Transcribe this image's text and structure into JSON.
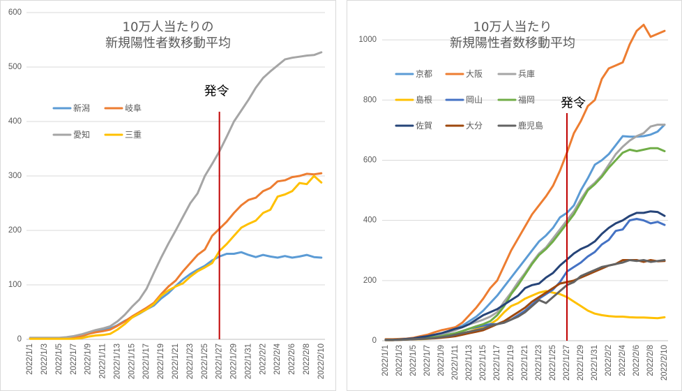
{
  "chart_data": [
    {
      "type": "line",
      "title_lines": [
        "10万人当たりの",
        "新規陽性者数移動平均"
      ],
      "xlabel": "",
      "ylabel": "",
      "x_ticks": [
        "2022/1/1",
        "2022/1/3",
        "2022/1/5",
        "2022/1/7",
        "2022/1/9",
        "2022/1/11",
        "2022/1/13",
        "2022/1/15",
        "2022/1/17",
        "2022/1/19",
        "2022/1/21",
        "2022/1/23",
        "2022/1/25",
        "2022/1/27",
        "2022/1/29",
        "2022/1/31",
        "2022/2/2",
        "2022/2/4",
        "2022/2/6",
        "2022/2/8",
        "2022/2/10"
      ],
      "yticks": [
        0,
        100,
        200,
        300,
        400,
        500,
        600
      ],
      "ylim": [
        0,
        600
      ],
      "grid": true,
      "legend": "upper-left",
      "marker": {
        "label": "発令",
        "day_index": 26,
        "color": "#C00000"
      },
      "series": [
        {
          "name": "新潟",
          "color": "#5B9BD5",
          "values": [
            2,
            2,
            2,
            2,
            2,
            2,
            3,
            5,
            10,
            14,
            17,
            20,
            26,
            34,
            40,
            47,
            55,
            62,
            75,
            85,
            98,
            110,
            120,
            128,
            135,
            145,
            152,
            157,
            157,
            160,
            155,
            151,
            155,
            152,
            150,
            153,
            150,
            152,
            155,
            151,
            150
          ]
        },
        {
          "name": "岐阜",
          "color": "#ED7D31",
          "values": [
            2,
            2,
            2,
            2,
            2,
            2,
            4,
            6,
            10,
            13,
            15,
            18,
            25,
            33,
            42,
            50,
            58,
            67,
            83,
            97,
            108,
            125,
            140,
            155,
            165,
            190,
            203,
            216,
            232,
            246,
            256,
            260,
            272,
            278,
            290,
            292,
            298,
            300,
            304,
            303,
            305
          ]
        },
        {
          "name": "愛知",
          "color": "#A5A5A5",
          "values": [
            3,
            3,
            3,
            3,
            3,
            4,
            6,
            9,
            13,
            17,
            20,
            24,
            33,
            45,
            60,
            73,
            93,
            122,
            150,
            176,
            200,
            225,
            250,
            268,
            300,
            322,
            345,
            372,
            400,
            420,
            440,
            462,
            480,
            492,
            503,
            514,
            517,
            519,
            521,
            522,
            527
          ]
        },
        {
          "name": "三重",
          "color": "#FFC000",
          "values": [
            1,
            1,
            1,
            1,
            1,
            1,
            1,
            2,
            5,
            7,
            8,
            10,
            18,
            28,
            40,
            48,
            55,
            65,
            80,
            90,
            97,
            103,
            115,
            125,
            132,
            140,
            162,
            175,
            190,
            205,
            212,
            218,
            232,
            238,
            262,
            266,
            272,
            287,
            285,
            300,
            288
          ]
        }
      ]
    },
    {
      "type": "line",
      "title_lines": [
        "10万人当たり",
        "新規陽性者数移動平均"
      ],
      "xlabel": "",
      "ylabel": "",
      "x_ticks": [
        "2022/1/1",
        "2022/1/3",
        "2022/1/5",
        "2022/1/7",
        "2022/1/9",
        "2022/1/11",
        "2022/1/13",
        "2022/1/15",
        "2022/1/17",
        "2022/1/19",
        "2022/1/21",
        "2022/1/23",
        "2022/1/25",
        "2022/1/27",
        "2022/1/29",
        "2022/1/31",
        "2022/2/2",
        "2022/2/4",
        "2022/2/6",
        "2022/2/8",
        "2022/2/10"
      ],
      "yticks": [
        0,
        200,
        400,
        600,
        800,
        1000
      ],
      "ylim": [
        0,
        1100
      ],
      "grid": true,
      "legend": "upper-left",
      "marker": {
        "label": "発令",
        "day_index": 26,
        "color": "#C00000"
      },
      "series": [
        {
          "name": "京都",
          "color": "#5B9BD5",
          "values": [
            3,
            3,
            4,
            5,
            6,
            7,
            10,
            15,
            22,
            30,
            40,
            50,
            65,
            80,
            100,
            125,
            150,
            180,
            210,
            240,
            270,
            300,
            330,
            350,
            375,
            410,
            425,
            450,
            500,
            540,
            585,
            600,
            620,
            650,
            680,
            678,
            678,
            680,
            685,
            695,
            718
          ]
        },
        {
          "name": "大阪",
          "color": "#ED7D31",
          "values": [
            5,
            5,
            6,
            7,
            10,
            15,
            20,
            28,
            35,
            40,
            45,
            60,
            85,
            110,
            140,
            175,
            200,
            250,
            300,
            340,
            380,
            420,
            450,
            480,
            515,
            565,
            625,
            690,
            730,
            780,
            800,
            870,
            905,
            915,
            925,
            985,
            1030,
            1050,
            1010,
            1020,
            1030
          ]
        },
        {
          "name": "兵庫",
          "color": "#A5A5A5",
          "values": [
            3,
            3,
            4,
            5,
            6,
            8,
            12,
            16,
            20,
            28,
            35,
            45,
            55,
            62,
            70,
            80,
            95,
            130,
            160,
            195,
            225,
            260,
            290,
            310,
            340,
            370,
            400,
            430,
            470,
            505,
            525,
            550,
            585,
            620,
            645,
            665,
            680,
            690,
            712,
            718,
            718
          ]
        },
        {
          "name": "島根",
          "color": "#FFC000",
          "values": [
            2,
            2,
            3,
            4,
            5,
            5,
            6,
            9,
            12,
            16,
            20,
            25,
            30,
            38,
            45,
            55,
            70,
            95,
            115,
            125,
            140,
            150,
            160,
            165,
            160,
            155,
            145,
            130,
            115,
            100,
            90,
            85,
            82,
            80,
            80,
            78,
            77,
            77,
            76,
            75,
            78
          ]
        },
        {
          "name": "岡山",
          "color": "#4472C4",
          "values": [
            3,
            3,
            4,
            5,
            6,
            8,
            10,
            12,
            15,
            20,
            25,
            32,
            40,
            45,
            50,
            55,
            55,
            60,
            70,
            85,
            100,
            120,
            140,
            155,
            170,
            195,
            230,
            245,
            260,
            280,
            295,
            320,
            335,
            365,
            370,
            400,
            405,
            400,
            390,
            395,
            385
          ]
        },
        {
          "name": "福岡",
          "color": "#70AD47",
          "values": [
            3,
            3,
            4,
            5,
            6,
            8,
            10,
            12,
            15,
            20,
            25,
            32,
            40,
            48,
            55,
            65,
            85,
            115,
            155,
            185,
            220,
            255,
            285,
            305,
            330,
            360,
            390,
            420,
            460,
            500,
            520,
            545,
            575,
            600,
            625,
            635,
            630,
            635,
            640,
            640,
            630
          ]
        },
        {
          "name": "佐賀",
          "color": "#264478",
          "values": [
            3,
            3,
            4,
            6,
            8,
            12,
            15,
            20,
            25,
            32,
            40,
            45,
            55,
            70,
            85,
            95,
            105,
            120,
            135,
            150,
            175,
            185,
            190,
            210,
            225,
            250,
            270,
            290,
            305,
            315,
            330,
            355,
            375,
            390,
            400,
            415,
            425,
            425,
            430,
            428,
            415
          ]
        },
        {
          "name": "大分",
          "color": "#9E480E",
          "values": [
            2,
            2,
            3,
            4,
            5,
            6,
            7,
            8,
            10,
            12,
            15,
            20,
            25,
            30,
            35,
            45,
            55,
            65,
            80,
            95,
            110,
            130,
            145,
            160,
            175,
            190,
            195,
            200,
            210,
            220,
            230,
            240,
            250,
            255,
            268,
            268,
            268,
            262,
            268,
            264,
            265
          ]
        },
        {
          "name": "鹿児島",
          "color": "#636363",
          "values": [
            2,
            2,
            3,
            4,
            5,
            6,
            7,
            9,
            12,
            15,
            20,
            25,
            30,
            35,
            40,
            50,
            55,
            60,
            70,
            80,
            95,
            115,
            135,
            125,
            145,
            165,
            185,
            195,
            215,
            225,
            235,
            245,
            250,
            255,
            260,
            268,
            265,
            268,
            262,
            265,
            268
          ]
        }
      ]
    }
  ]
}
